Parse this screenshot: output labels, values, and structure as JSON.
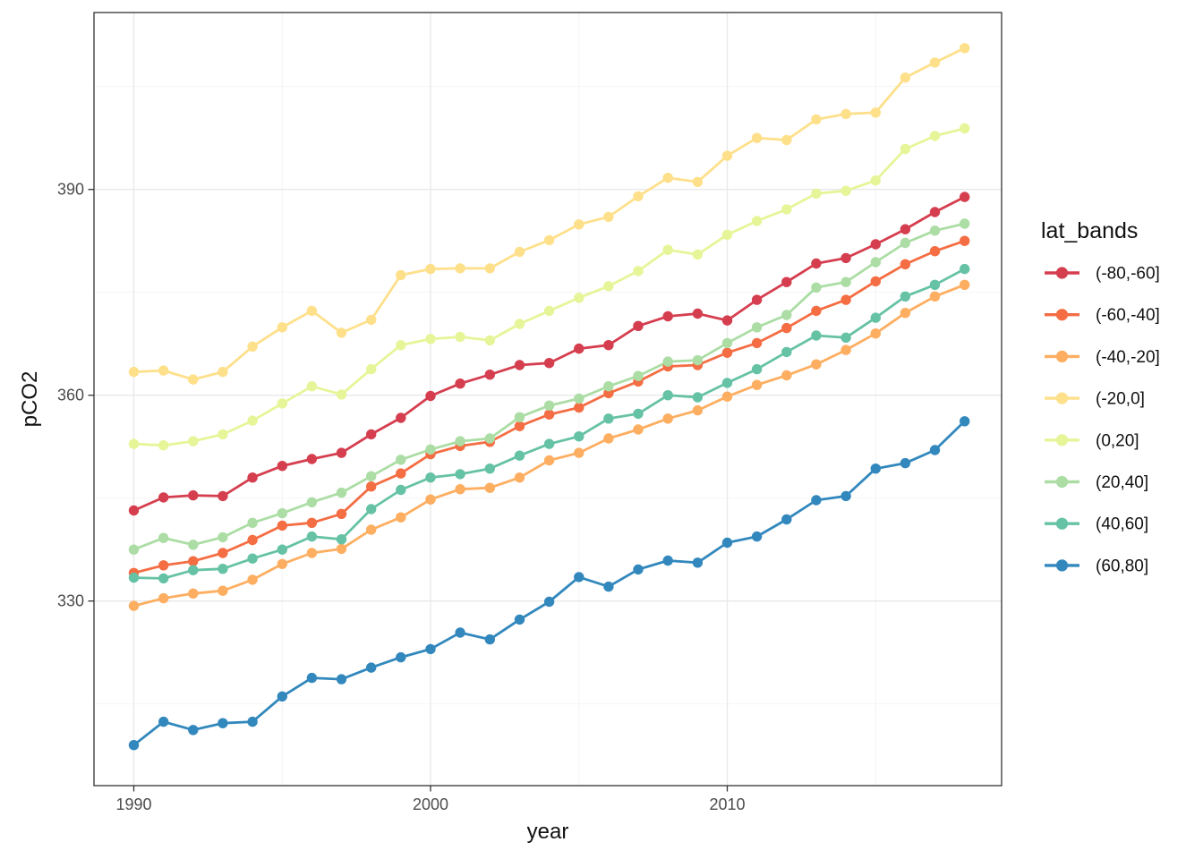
{
  "chart_data": {
    "type": "line",
    "title": "",
    "xlabel": "year",
    "ylabel": "pCO2",
    "legend_title": "lat_bands",
    "legend_position": "right",
    "grid": true,
    "marker": "point",
    "xlim": [
      1988.6,
      2019.3
    ],
    "ylim": [
      303.1,
      415.8
    ],
    "x_ticks": [
      1990,
      2000,
      2010
    ],
    "x_minor": [
      1995,
      2005,
      2015
    ],
    "y_ticks": [
      330,
      360,
      390
    ],
    "y_minor": [
      315,
      345,
      375,
      405
    ],
    "x": [
      1990,
      1991,
      1992,
      1993,
      1994,
      1995,
      1996,
      1997,
      1998,
      1999,
      2000,
      2001,
      2002,
      2003,
      2004,
      2005,
      2006,
      2007,
      2008,
      2009,
      2010,
      2011,
      2012,
      2013,
      2014,
      2015,
      2016,
      2017,
      2018
    ],
    "series": [
      {
        "name": "(-80,-60]",
        "color": "#d53e4f",
        "values": [
          343.2,
          345.1,
          345.4,
          345.3,
          348.0,
          349.7,
          350.7,
          351.6,
          354.3,
          356.7,
          359.9,
          361.7,
          363.0,
          364.4,
          364.7,
          366.8,
          367.3,
          370.1,
          371.5,
          371.9,
          370.9,
          373.9,
          376.5,
          379.2,
          380.0,
          382.0,
          384.2,
          386.7,
          388.9
        ]
      },
      {
        "name": "(-60,-40]",
        "color": "#f46d43",
        "values": [
          334.1,
          335.2,
          335.8,
          337.0,
          338.9,
          341.0,
          341.4,
          342.7,
          346.7,
          348.6,
          351.4,
          352.6,
          353.2,
          355.5,
          357.2,
          358.2,
          360.3,
          362.0,
          364.2,
          364.4,
          366.2,
          367.6,
          369.8,
          372.3,
          373.9,
          376.6,
          379.1,
          381.0,
          382.5
        ]
      },
      {
        "name": "(-40,-20]",
        "color": "#fdae61",
        "values": [
          329.3,
          330.4,
          331.1,
          331.5,
          333.1,
          335.4,
          337.0,
          337.6,
          340.4,
          342.2,
          344.8,
          346.3,
          346.5,
          348.0,
          350.5,
          351.6,
          353.7,
          355.0,
          356.6,
          357.8,
          359.8,
          361.5,
          362.9,
          364.5,
          366.6,
          369.0,
          372.0,
          374.4,
          376.1
        ]
      },
      {
        "name": "(-20,0]",
        "color": "#fee08b",
        "values": [
          363.4,
          363.6,
          362.3,
          363.4,
          367.1,
          369.9,
          372.3,
          369.1,
          371.0,
          377.5,
          378.4,
          378.5,
          378.5,
          380.9,
          382.6,
          384.9,
          386.0,
          389.0,
          391.7,
          391.1,
          394.9,
          397.5,
          397.2,
          400.2,
          401.0,
          401.2,
          406.3,
          408.5,
          410.6
        ]
      },
      {
        "name": "(0,20]",
        "color": "#e6f598",
        "values": [
          352.9,
          352.7,
          353.3,
          354.3,
          356.3,
          358.8,
          361.3,
          360.1,
          363.8,
          367.3,
          368.2,
          368.5,
          368.0,
          370.4,
          372.3,
          374.2,
          375.9,
          378.1,
          381.2,
          380.5,
          383.4,
          385.4,
          387.1,
          389.4,
          389.8,
          391.3,
          395.9,
          397.8,
          398.9
        ]
      },
      {
        "name": "(20,40]",
        "color": "#abdda4",
        "values": [
          337.5,
          339.2,
          338.2,
          339.3,
          341.4,
          342.8,
          344.4,
          345.8,
          348.2,
          350.6,
          352.1,
          353.3,
          353.7,
          356.8,
          358.5,
          359.5,
          361.3,
          362.8,
          364.9,
          365.1,
          367.6,
          369.9,
          371.7,
          375.7,
          376.5,
          379.4,
          382.2,
          384.0,
          385.0
        ]
      },
      {
        "name": "(40,60]",
        "color": "#66c2a5",
        "values": [
          333.4,
          333.3,
          334.5,
          334.7,
          336.2,
          337.5,
          339.4,
          339.0,
          343.4,
          346.2,
          348.0,
          348.5,
          349.3,
          351.2,
          352.9,
          354.0,
          356.6,
          357.3,
          360.0,
          359.7,
          361.8,
          363.8,
          366.3,
          368.7,
          368.4,
          371.3,
          374.4,
          376.1,
          378.4
        ]
      },
      {
        "name": "(60,80]",
        "color": "#3288bd",
        "values": [
          309.0,
          312.4,
          311.2,
          312.2,
          312.4,
          316.1,
          318.8,
          318.6,
          320.3,
          321.8,
          323.0,
          325.4,
          324.4,
          327.3,
          329.9,
          333.5,
          332.1,
          334.6,
          335.9,
          335.6,
          338.5,
          339.4,
          341.9,
          344.7,
          345.3,
          349.3,
          350.1,
          352.0,
          356.2
        ]
      }
    ]
  },
  "theme": {
    "panel_background": "#ffffff",
    "panel_border": "#333333",
    "grid_major": "#e8e8e8",
    "grid_minor": "#f3f3f3",
    "tick_color": "#333333",
    "tick_label_color": "#4d4d4d",
    "axis_title_color": "#111111",
    "legend_text_color": "#111111"
  }
}
